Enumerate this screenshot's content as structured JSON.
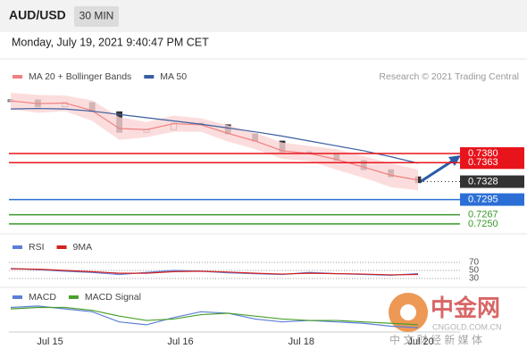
{
  "header": {
    "symbol": "AUD/USD",
    "interval": "30 MIN"
  },
  "timestamp": "Monday, July 19, 2021 9:40:47 PM CET",
  "credit": "Research © 2021 Trading Central",
  "watermark": {
    "name": "中金网",
    "site": "CNGOLD.COM.CN",
    "tagline": "中 文 财 经 新 媒 体"
  },
  "time_axis": {
    "xlim": [
      0,
      15
    ],
    "xticks": [
      {
        "value": 1.45,
        "label": "Jul 15"
      },
      {
        "value": 6.25,
        "label": "Jul 16"
      },
      {
        "value": 10.7,
        "label": "Jul 18"
      },
      {
        "value": 15.1,
        "label": "Jul 20"
      }
    ]
  },
  "chart_data": [
    {
      "type": "line",
      "ylim": [
        0.724,
        0.7482
      ],
      "series": [
        {
          "color": "#333333",
          "values": [
            0.7479,
            0.7466,
            0.7474,
            0.7457,
            0.7419,
            0.7424,
            0.7436,
            0.7433,
            0.7416,
            0.7403,
            0.7383,
            0.738,
            0.7367,
            0.735,
            0.7337,
            0.7326
          ]
        },
        {
          "name": "MA 20 + Bollinger Bands",
          "color": "#f08080",
          "band_color": "#fbd5d5",
          "values": [
            0.7477,
            0.7472,
            0.7473,
            0.7459,
            0.7426,
            0.7424,
            0.7435,
            0.7433,
            0.7417,
            0.7403,
            0.7385,
            0.738,
            0.7369,
            0.7355,
            0.734,
            0.7331
          ],
          "upper": [
            0.7492,
            0.7488,
            0.7487,
            0.7478,
            0.7447,
            0.7438,
            0.745,
            0.7445,
            0.7432,
            0.7418,
            0.74,
            0.7394,
            0.7388,
            0.7375,
            0.7362,
            0.735
          ],
          "lower": [
            0.7462,
            0.7455,
            0.7458,
            0.744,
            0.7405,
            0.741,
            0.742,
            0.742,
            0.7402,
            0.7388,
            0.737,
            0.7366,
            0.735,
            0.7335,
            0.7318,
            0.7312
          ]
        },
        {
          "name": "MA 50",
          "color": "#3a5fa0",
          "values": [
            0.7462,
            0.7463,
            0.7462,
            0.7458,
            0.7452,
            0.7446,
            0.744,
            0.7434,
            0.7427,
            0.742,
            0.7412,
            0.7403,
            0.7394,
            0.7385,
            0.7374,
            0.7362
          ]
        }
      ],
      "levels": [
        {
          "value": 0.738,
          "label": "0.7380",
          "color": "#e8141c"
        },
        {
          "value": 0.7363,
          "label": "0.7363",
          "color": "#e8141c"
        },
        {
          "value": 0.7328,
          "label": "0.7328",
          "color": "#333333"
        },
        {
          "value": 0.7295,
          "label": "0.7295",
          "color": "#2b6fd6"
        },
        {
          "value": 0.7267,
          "label": "0.7267",
          "color": "#3a9a2a"
        },
        {
          "value": 0.725,
          "label": "0.7250",
          "color": "#3a9a2a"
        }
      ]
    },
    {
      "type": "line",
      "ylim": [
        20,
        80
      ],
      "yticks": [
        70,
        50,
        30
      ],
      "series": [
        {
          "name": "RSI",
          "color": "#5b7fd6",
          "values": [
            55,
            52,
            48,
            45,
            40,
            45,
            50,
            48,
            44,
            42,
            40,
            45,
            42,
            40,
            38,
            42
          ]
        },
        {
          "name": "9MA",
          "color": "#d42020",
          "values": [
            54,
            53,
            50,
            47,
            43,
            43,
            47,
            48,
            46,
            43,
            41,
            43,
            42,
            41,
            39,
            40
          ]
        }
      ]
    },
    {
      "type": "line",
      "ylim": [
        -0.0013,
        0.0008
      ],
      "series": [
        {
          "name": "MACD",
          "color": "#5b7fd6",
          "values": [
            0.0004,
            0.0005,
            0.0003,
            0.0001,
            -0.0006,
            -0.0008,
            -0.0003,
            0.0001,
            0.0,
            -0.0004,
            -0.0006,
            -0.0005,
            -0.0006,
            -0.0007,
            -0.0009,
            -0.001
          ]
        },
        {
          "name": "MACD Signal",
          "color": "#4aa02c",
          "values": [
            0.0003,
            0.0004,
            0.0004,
            0.0002,
            -0.0002,
            -0.0005,
            -0.0004,
            -0.0001,
            0.0,
            -0.0002,
            -0.0004,
            -0.0005,
            -0.0005,
            -0.0006,
            -0.0007,
            -0.0008
          ]
        }
      ]
    }
  ]
}
